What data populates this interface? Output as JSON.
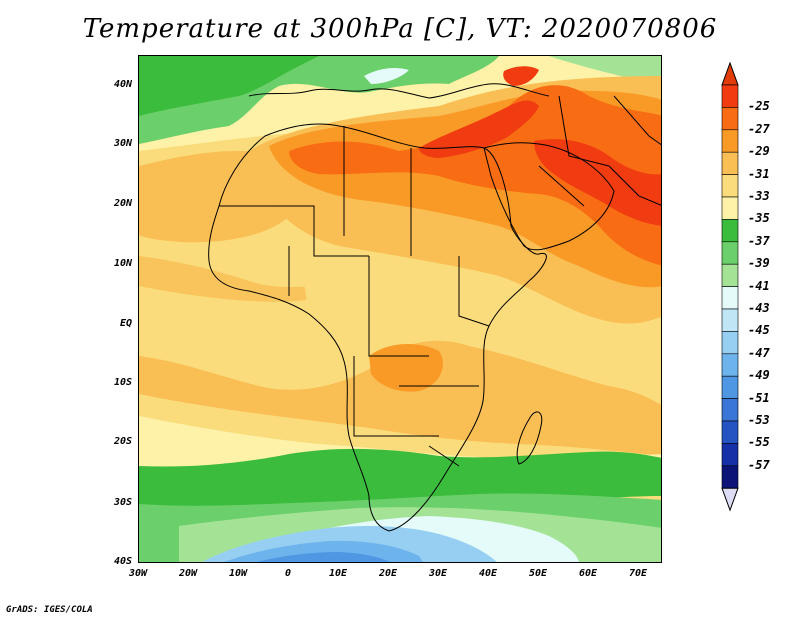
{
  "title": "Temperature at 300hPa [C], VT: 2020070806",
  "credit": "GrADS: IGES/COLA",
  "axes": {
    "lat_labels": [
      "40N",
      "30N",
      "20N",
      "10N",
      "EQ",
      "10S",
      "20S",
      "30S",
      "40S"
    ],
    "lon_labels": [
      "30W",
      "20W",
      "10W",
      "0",
      "10E",
      "20E",
      "30E",
      "40E",
      "50E",
      "60E",
      "70E"
    ]
  },
  "colorbar": {
    "labels": [
      "-25",
      "-27",
      "-29",
      "-31",
      "-33",
      "-35",
      "-37",
      "-39",
      "-41",
      "-43",
      "-45",
      "-47",
      "-49",
      "-51",
      "-53",
      "-55",
      "-57"
    ],
    "colors": [
      "#f03c10",
      "#f86c14",
      "#fa9a26",
      "#f9be54",
      "#fbdc7c",
      "#fef1a8",
      "#3cbc3c",
      "#6bd06b",
      "#a4e396",
      "#e4fbfa",
      "#c0e6f6",
      "#97cff3",
      "#6db3ec",
      "#4f97e3",
      "#3a76d6",
      "#2354c2",
      "#1630a8",
      "#0c1478"
    ],
    "over_color": "#e23c0a",
    "under_color": "#dcdcf5"
  }
}
